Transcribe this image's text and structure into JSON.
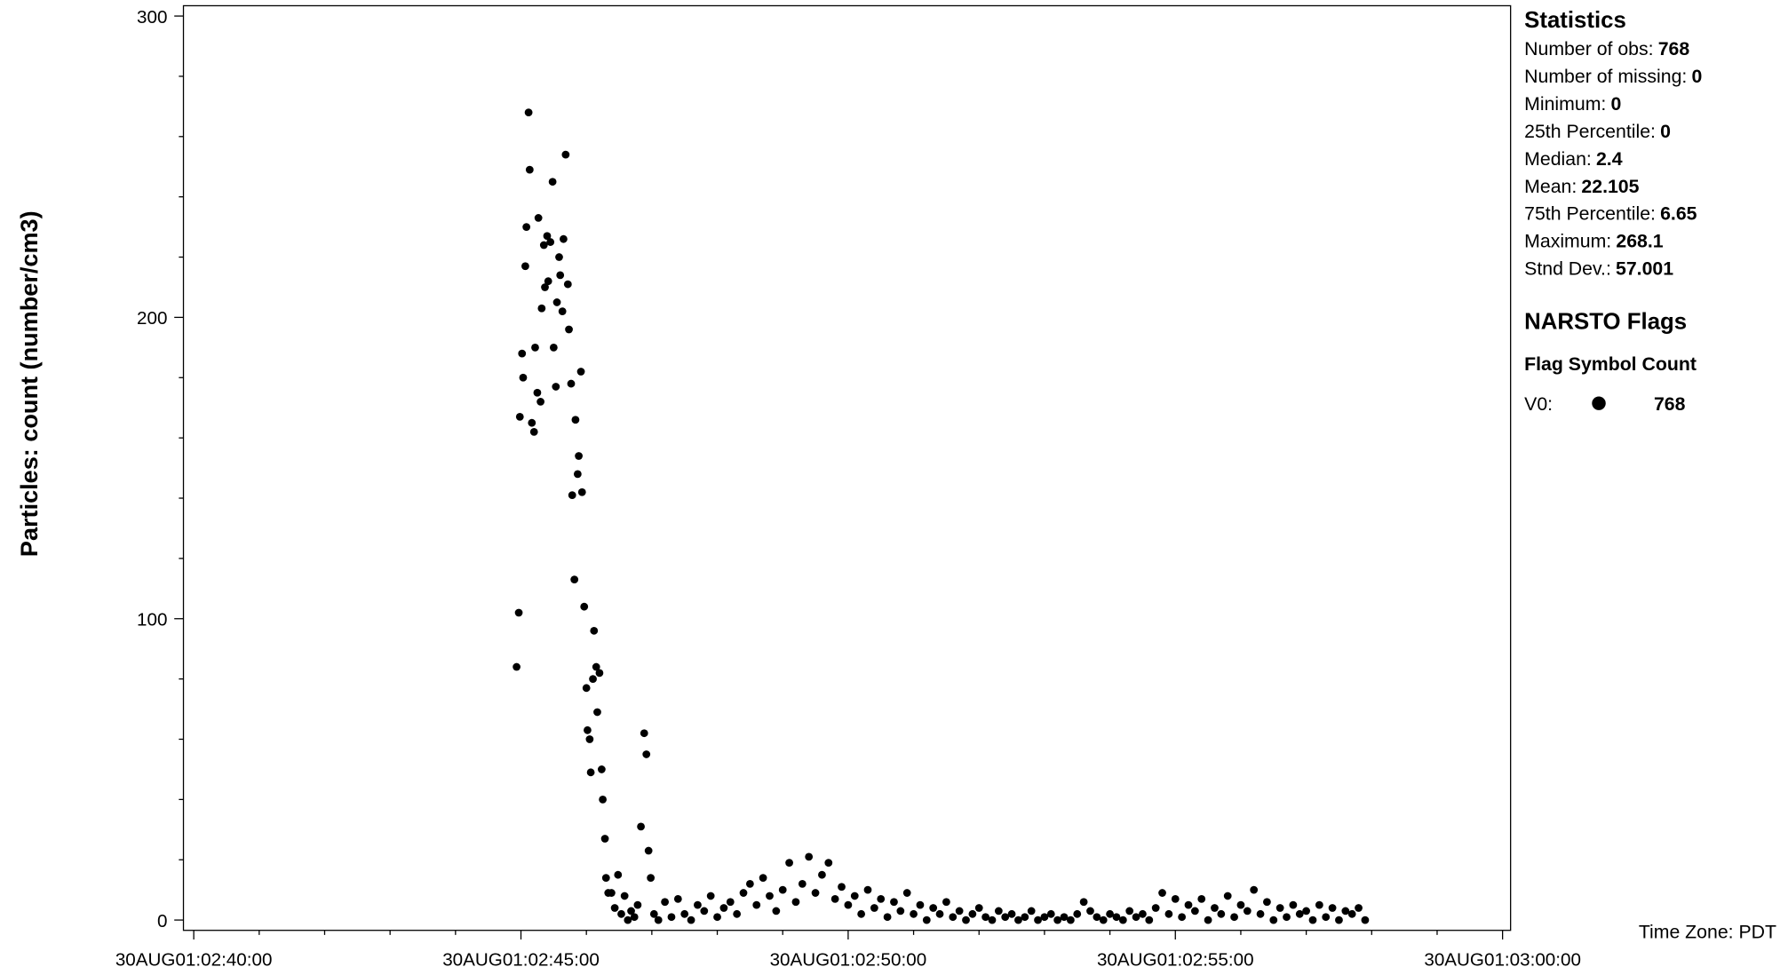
{
  "chart_data": {
    "type": "scatter",
    "ylabel": "Particles: count (number/cm3)",
    "color": "#000000",
    "xlim": [
      "30AUG01:02:40:00",
      "30AUG01:03:00:00"
    ],
    "xticks": [
      "30AUG01:02:40:00",
      "30AUG01:02:45:00",
      "30AUG01:02:50:00",
      "30AUG01:02:55:00",
      "30AUG01:03:00:00"
    ],
    "xminorticks": [
      "30AUG01:02:41:00",
      "30AUG01:02:42:00",
      "30AUG01:02:43:00",
      "30AUG01:02:44:00",
      "30AUG01:02:46:00",
      "30AUG01:02:47:00",
      "30AUG01:02:48:00",
      "30AUG01:02:49:00",
      "30AUG01:02:51:00",
      "30AUG01:02:52:00",
      "30AUG01:02:53:00",
      "30AUG01:02:54:00",
      "30AUG01:02:56:00",
      "30AUG01:02:57:00",
      "30AUG01:02:58:00",
      "30AUG01:02:59:00"
    ],
    "ylim": [
      0,
      300
    ],
    "yticks": [
      0,
      100,
      200,
      300
    ],
    "yminorticks": [
      20,
      40,
      60,
      80,
      120,
      140,
      160,
      180,
      220,
      240,
      260,
      280
    ],
    "time_zone": "Time Zone: PDT",
    "x": [
      "30AUG01:02:44:56",
      "30AUG01:02:44:58",
      "30AUG01:02:44:59",
      "30AUG01:02:45:01",
      "30AUG01:02:45:02",
      "30AUG01:02:45:04",
      "30AUG01:02:45:05",
      "30AUG01:02:45:07",
      "30AUG01:02:45:08",
      "30AUG01:02:45:10",
      "30AUG01:02:45:12",
      "30AUG01:02:45:13",
      "30AUG01:02:45:15",
      "30AUG01:02:45:16",
      "30AUG01:02:45:18",
      "30AUG01:02:45:19",
      "30AUG01:02:45:21",
      "30AUG01:02:45:22",
      "30AUG01:02:45:24",
      "30AUG01:02:45:25",
      "30AUG01:02:45:27",
      "30AUG01:02:45:29",
      "30AUG01:02:45:30",
      "30AUG01:02:45:32",
      "30AUG01:02:45:33",
      "30AUG01:02:45:35",
      "30AUG01:02:45:36",
      "30AUG01:02:45:38",
      "30AUG01:02:45:39",
      "30AUG01:02:45:41",
      "30AUG01:02:45:43",
      "30AUG01:02:45:44",
      "30AUG01:02:45:46",
      "30AUG01:02:45:47",
      "30AUG01:02:45:49",
      "30AUG01:02:45:50",
      "30AUG01:02:45:52",
      "30AUG01:02:45:53",
      "30AUG01:02:45:55",
      "30AUG01:02:45:56",
      "30AUG01:02:45:58",
      "30AUG01:02:46:00",
      "30AUG01:02:46:01",
      "30AUG01:02:46:03",
      "30AUG01:02:46:04",
      "30AUG01:02:46:06",
      "30AUG01:02:46:07",
      "30AUG01:02:46:09",
      "30AUG01:02:46:10",
      "30AUG01:02:46:12",
      "30AUG01:02:46:14",
      "30AUG01:02:46:15",
      "30AUG01:02:46:17",
      "30AUG01:02:46:18",
      "30AUG01:02:46:20",
      "30AUG01:02:46:23",
      "30AUG01:02:46:26",
      "30AUG01:02:46:29",
      "30AUG01:02:46:32",
      "30AUG01:02:46:35",
      "30AUG01:02:46:38",
      "30AUG01:02:46:41",
      "30AUG01:02:46:44",
      "30AUG01:02:46:47",
      "30AUG01:02:46:50",
      "30AUG01:02:46:53",
      "30AUG01:02:46:55",
      "30AUG01:02:46:57",
      "30AUG01:02:46:59",
      "30AUG01:02:47:02",
      "30AUG01:02:47:06",
      "30AUG01:02:47:12",
      "30AUG01:02:47:18",
      "30AUG01:02:47:24",
      "30AUG01:02:47:30",
      "30AUG01:02:47:36",
      "30AUG01:02:47:42",
      "30AUG01:02:47:48",
      "30AUG01:02:47:54",
      "30AUG01:02:48:00",
      "30AUG01:02:48:06",
      "30AUG01:02:48:12",
      "30AUG01:02:48:18",
      "30AUG01:02:48:24",
      "30AUG01:02:48:30",
      "30AUG01:02:48:36",
      "30AUG01:02:48:42",
      "30AUG01:02:48:48",
      "30AUG01:02:48:54",
      "30AUG01:02:49:00",
      "30AUG01:02:49:06",
      "30AUG01:02:49:12",
      "30AUG01:02:49:18",
      "30AUG01:02:49:24",
      "30AUG01:02:49:30",
      "30AUG01:02:49:36",
      "30AUG01:02:49:42",
      "30AUG01:02:49:48",
      "30AUG01:02:49:54",
      "30AUG01:02:50:00",
      "30AUG01:02:50:06",
      "30AUG01:02:50:12",
      "30AUG01:02:50:18",
      "30AUG01:02:50:24",
      "30AUG01:02:50:30",
      "30AUG01:02:50:36",
      "30AUG01:02:50:42",
      "30AUG01:02:50:48",
      "30AUG01:02:50:54",
      "30AUG01:02:51:00",
      "30AUG01:02:51:06",
      "30AUG01:02:51:12",
      "30AUG01:02:51:18",
      "30AUG01:02:51:24",
      "30AUG01:02:51:30",
      "30AUG01:02:51:36",
      "30AUG01:02:51:42",
      "30AUG01:02:51:48",
      "30AUG01:02:51:54",
      "30AUG01:02:52:00",
      "30AUG01:02:52:06",
      "30AUG01:02:52:12",
      "30AUG01:02:52:18",
      "30AUG01:02:52:24",
      "30AUG01:02:52:30",
      "30AUG01:02:52:36",
      "30AUG01:02:52:42",
      "30AUG01:02:52:48",
      "30AUG01:02:52:54",
      "30AUG01:02:53:00",
      "30AUG01:02:53:06",
      "30AUG01:02:53:12",
      "30AUG01:02:53:18",
      "30AUG01:02:53:24",
      "30AUG01:02:53:30",
      "30AUG01:02:53:36",
      "30AUG01:02:53:42",
      "30AUG01:02:53:48",
      "30AUG01:02:53:54",
      "30AUG01:02:54:00",
      "30AUG01:02:54:06",
      "30AUG01:02:54:12",
      "30AUG01:02:54:18",
      "30AUG01:02:54:24",
      "30AUG01:02:54:30",
      "30AUG01:02:54:36",
      "30AUG01:02:54:42",
      "30AUG01:02:54:48",
      "30AUG01:02:54:54",
      "30AUG01:02:55:00",
      "30AUG01:02:55:06",
      "30AUG01:02:55:12",
      "30AUG01:02:55:18",
      "30AUG01:02:55:24",
      "30AUG01:02:55:30",
      "30AUG01:02:55:36",
      "30AUG01:02:55:42",
      "30AUG01:02:55:48",
      "30AUG01:02:55:54",
      "30AUG01:02:56:00",
      "30AUG01:02:56:06",
      "30AUG01:02:56:12",
      "30AUG01:02:56:18",
      "30AUG01:02:56:24",
      "30AUG01:02:56:30",
      "30AUG01:02:56:36",
      "30AUG01:02:56:42",
      "30AUG01:02:56:48",
      "30AUG01:02:56:54",
      "30AUG01:02:57:00",
      "30AUG01:02:57:06",
      "30AUG01:02:57:12",
      "30AUG01:02:57:18",
      "30AUG01:02:57:24",
      "30AUG01:02:57:30",
      "30AUG01:02:57:36",
      "30AUG01:02:57:42",
      "30AUG01:02:57:48",
      "30AUG01:02:57:54"
    ],
    "values": [
      84,
      102,
      167,
      188,
      180,
      217,
      230,
      268,
      249,
      165,
      162,
      190,
      175,
      233,
      172,
      203,
      224,
      210,
      227,
      212,
      225,
      245,
      190,
      177,
      205,
      220,
      214,
      202,
      226,
      254,
      211,
      196,
      178,
      141,
      113,
      166,
      148,
      154,
      182,
      142,
      104,
      77,
      63,
      60,
      49,
      80,
      96,
      84,
      69,
      82,
      50,
      40,
      27,
      14,
      9,
      9,
      4,
      15,
      2,
      8,
      0,
      3,
      1,
      5,
      31,
      62,
      55,
      23,
      14,
      2,
      0,
      6,
      1,
      7,
      2,
      0,
      5,
      3,
      8,
      1,
      4,
      6,
      2,
      9,
      12,
      5,
      14,
      8,
      3,
      10,
      19,
      6,
      12,
      21,
      9,
      15,
      19,
      7,
      11,
      5,
      8,
      2,
      10,
      4,
      7,
      1,
      6,
      3,
      9,
      2,
      5,
      0,
      4,
      2,
      6,
      1,
      3,
      0,
      2,
      4,
      1,
      0,
      3,
      1,
      2,
      0,
      1,
      3,
      0,
      1,
      2,
      0,
      1,
      0,
      2,
      6,
      3,
      1,
      0,
      2,
      1,
      0,
      3,
      1,
      2,
      0,
      4,
      9,
      2,
      7,
      1,
      5,
      3,
      7,
      0,
      4,
      2,
      8,
      1,
      5,
      3,
      10,
      2,
      6,
      0,
      4,
      1,
      5,
      2,
      3,
      0,
      5,
      1,
      4,
      0,
      3,
      2,
      4,
      0
    ]
  },
  "statistics": {
    "title": "Statistics",
    "items": [
      {
        "label": "Number of obs:",
        "value": 768
      },
      {
        "label": "Number of missing:",
        "value": 0
      },
      {
        "label": "Minimum:",
        "value": 0
      },
      {
        "label": "25th Percentile:",
        "value": 0
      },
      {
        "label": "Median:",
        "value": 2.4
      },
      {
        "label": "Mean:",
        "value": 22.105
      },
      {
        "label": "75th Percentile:",
        "value": 6.65
      },
      {
        "label": "Maximum:",
        "value": 268.1
      },
      {
        "label": "Stnd Dev.:",
        "value": 57.001
      }
    ]
  },
  "flags": {
    "title": "NARSTO Flags",
    "header": "Flag Symbol Count",
    "rows": [
      {
        "flag": "V0:",
        "count": 768
      }
    ]
  }
}
